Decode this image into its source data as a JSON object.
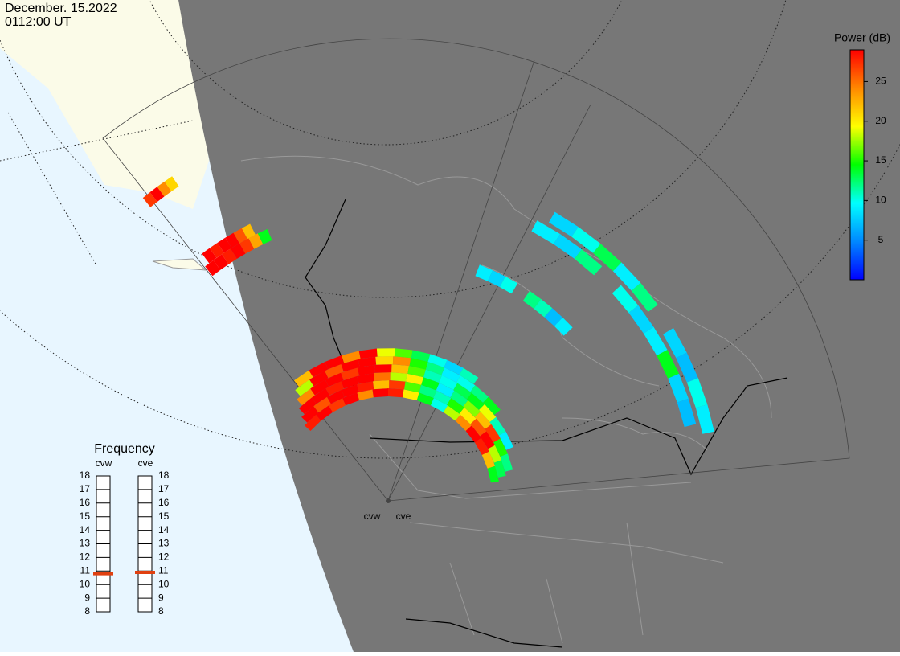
{
  "header": {
    "date": "December. 15.2022",
    "time": "0112:00 UT"
  },
  "colorbar": {
    "title": "Power (dB)",
    "lim": [
      0,
      29
    ],
    "ticks": [
      5,
      10,
      15,
      20,
      25
    ],
    "colors": [
      "#0000ff",
      "#0088ff",
      "#00ffff",
      "#00ff00",
      "#ffff00",
      "#ff8800",
      "#ff0000"
    ]
  },
  "frequency": {
    "title": "Frequency",
    "lim": [
      8,
      18
    ],
    "ticks": [
      8,
      9,
      10,
      11,
      12,
      13,
      14,
      15,
      16,
      17,
      18
    ],
    "radars": [
      {
        "name": "cvw",
        "value": 10.8
      },
      {
        "name": "cve",
        "value": 10.9
      }
    ]
  },
  "radars": [
    "cvw",
    "cve"
  ],
  "echoes": [
    [
      28,
      29,
      27,
      29,
      24,
      29,
      28,
      20,
      14,
      10,
      18,
      24,
      29,
      28,
      22,
      14
    ],
    [
      29,
      26,
      29,
      29,
      28,
      22,
      27,
      16,
      12,
      11,
      15,
      20,
      26,
      29,
      18,
      13
    ],
    [
      29,
      29,
      28,
      29,
      29,
      25,
      18,
      20,
      14,
      9,
      12,
      17,
      22,
      27,
      15,
      12
    ],
    [
      24,
      29,
      29,
      27,
      29,
      29,
      22,
      16,
      11,
      10,
      13,
      14,
      19,
      11,
      9,
      null
    ],
    [
      18,
      29,
      26,
      29,
      29,
      21,
      24,
      15,
      12,
      9,
      10,
      12,
      14,
      null,
      null,
      null
    ],
    [
      22,
      29,
      29,
      24,
      29,
      19,
      16,
      13,
      10,
      8,
      11,
      null,
      null,
      null,
      null,
      null
    ],
    [
      29,
      29,
      28,
      29,
      27,
      23,
      14,
      null
    ],
    [
      29,
      28,
      29,
      29,
      26,
      22,
      null,
      null
    ],
    [
      27,
      29,
      24,
      21,
      null,
      null
    ],
    [
      9,
      8,
      12,
      null,
      10,
      8,
      9,
      14,
      8,
      7
    ],
    [
      8,
      10,
      13,
      9,
      12,
      null,
      8,
      7,
      10,
      9
    ],
    [
      null,
      9,
      8,
      10,
      null,
      12,
      11,
      7,
      9,
      null
    ]
  ]
}
